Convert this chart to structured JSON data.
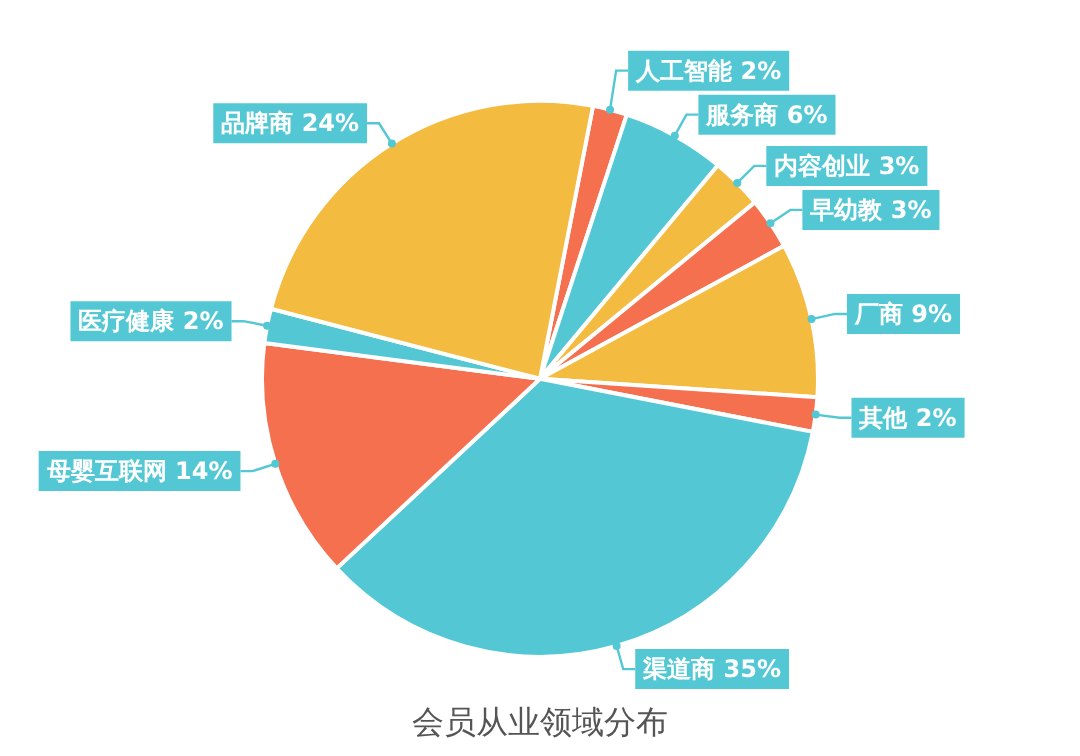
{
  "chart_data": {
    "type": "pie",
    "title": "会员从业领域分布",
    "categories": [
      "人工智能",
      "服务商",
      "内容创业",
      "早幼教",
      "厂商",
      "其他",
      "渠道商",
      "母婴互联网",
      "医疗健康",
      "品牌商"
    ],
    "values": [
      2,
      6,
      3,
      3,
      9,
      2,
      35,
      14,
      2,
      24
    ],
    "colors": [
      "#f4704f",
      "#53c8d4",
      "#f3bb3f",
      "#f4704f",
      "#f3bb3f",
      "#f4704f",
      "#53c8d4",
      "#f4704f",
      "#53c8d4",
      "#f3bb3f"
    ],
    "value_labels": [
      "2%",
      "6%",
      "3%",
      "3%",
      "9%",
      "2%",
      "35%",
      "14%",
      "2%",
      "24%"
    ],
    "legend": false
  }
}
